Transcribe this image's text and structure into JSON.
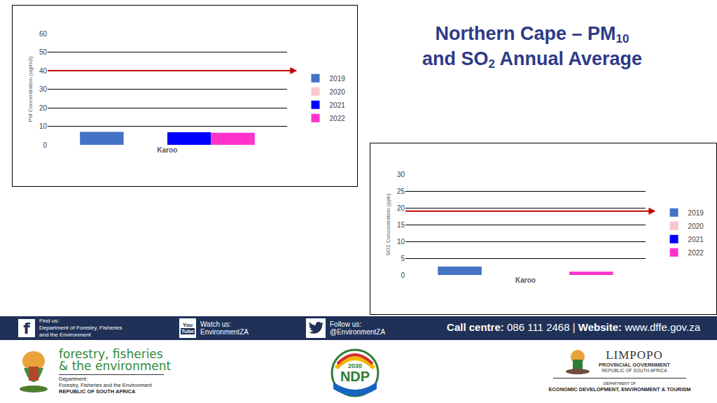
{
  "slide": {
    "title_lines": [
      [
        {
          "text": "Northern Cape – PM"
        },
        {
          "text": "10",
          "sub": true
        }
      ],
      [
        {
          "text": "and SO"
        },
        {
          "text": "2",
          "sub": true
        },
        {
          "text": " Annual Average"
        }
      ]
    ],
    "footer": {
      "facebook_icon": "f",
      "find_us_label": "Find us:",
      "find_us_lines": [
        "Department of Forestry, Fisheries",
        "and the Environment"
      ],
      "youtube_icon": [
        "You",
        "Tube"
      ],
      "watch_label": "Watch us:",
      "watch_text": "EnvironmentZA",
      "follow_label": "Follow us:",
      "follow_text": "@EnvironmentZA",
      "call_label": "Call centre:",
      "call_number": "086 111 2468",
      "separator": "|",
      "website_label": "Website:",
      "website": "www.dffe.gov.za"
    },
    "logos": {
      "dffe": {
        "name_lines": [
          "forestry, fisheries",
          "& the environment"
        ],
        "dept_lines": [
          "Department:",
          "Forestry, Fisheries and the Environment",
          "REPUBLIC OF SOUTH AFRICA"
        ]
      },
      "ndp": {
        "year": "2030",
        "name": "NDP"
      },
      "limpopo": {
        "name": "LIMPOPO",
        "lines": [
          "PROVINCIAL GOVERNMENT",
          "REPUBLIC OF SOUTH AFRICA"
        ],
        "dept_lines": [
          "DEPARTMENT OF",
          "ECONOMIC DEVELOPMENT, ENVIRONMENT & TOURISM"
        ]
      }
    }
  },
  "chart_data": [
    {
      "type": "bar",
      "y_label": "PM Concentration (ug/m3)",
      "categories": [
        "Karoo"
      ],
      "series": [
        {
          "name": "2019",
          "color": "#4472c4",
          "values": [
            7
          ]
        },
        {
          "name": "2020",
          "color": "#f8c6cf",
          "values": [
            null
          ]
        },
        {
          "name": "2021",
          "color": "#0000ff",
          "values": [
            6.8
          ]
        },
        {
          "name": "2022",
          "color": "#ff33cc",
          "values": [
            6.5
          ]
        }
      ],
      "ylim": [
        0,
        60
      ],
      "yticks": [
        0,
        10,
        20,
        30,
        40,
        50,
        60
      ],
      "grid": true,
      "legend": "right",
      "threshold": 40
    },
    {
      "type": "bar",
      "y_label": "SO2 Concentration (ppb)",
      "categories": [
        "Karoo"
      ],
      "series": [
        {
          "name": "2019",
          "color": "#4472c4",
          "values": [
            2.5
          ]
        },
        {
          "name": "2020",
          "color": "#f8c6cf",
          "values": [
            null
          ]
        },
        {
          "name": "2021",
          "color": "#0000ff",
          "values": [
            null
          ]
        },
        {
          "name": "2022",
          "color": "#ff33cc",
          "values": [
            1
          ]
        }
      ],
      "ylim": [
        0,
        30
      ],
      "yticks": [
        0,
        5,
        10,
        15,
        20,
        25,
        30
      ],
      "grid": true,
      "legend": "right",
      "threshold": 19
    }
  ]
}
